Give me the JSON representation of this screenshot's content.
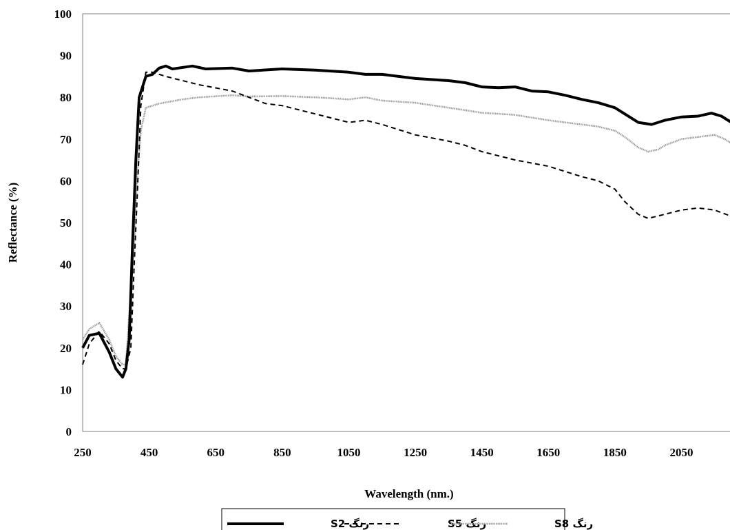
{
  "chart_data": {
    "type": "line",
    "title": "",
    "xlabel": "Wavelength (nm.)",
    "ylabel": "Reflectance (%)",
    "xlim": [
      250,
      2200
    ],
    "ylim": [
      0,
      100
    ],
    "x_ticks": [
      250,
      450,
      650,
      850,
      1050,
      1250,
      1450,
      1650,
      1850,
      2050
    ],
    "y_ticks": [
      0,
      10,
      20,
      30,
      40,
      50,
      60,
      70,
      80,
      90,
      100
    ],
    "grid": false,
    "legend_position": "bottom",
    "series": [
      {
        "name": "رنگ S2",
        "style": "solid-thick",
        "color": "#000000",
        "points": [
          [
            250,
            20
          ],
          [
            270,
            23
          ],
          [
            300,
            23.5
          ],
          [
            330,
            19
          ],
          [
            350,
            15
          ],
          [
            370,
            13
          ],
          [
            380,
            15
          ],
          [
            390,
            22
          ],
          [
            400,
            45
          ],
          [
            410,
            65
          ],
          [
            420,
            80
          ],
          [
            440,
            85
          ],
          [
            460,
            85.5
          ],
          [
            480,
            87
          ],
          [
            500,
            87.5
          ],
          [
            520,
            86.8
          ],
          [
            580,
            87.5
          ],
          [
            620,
            86.8
          ],
          [
            700,
            87
          ],
          [
            750,
            86.3
          ],
          [
            850,
            86.8
          ],
          [
            950,
            86.5
          ],
          [
            1050,
            86
          ],
          [
            1100,
            85.5
          ],
          [
            1150,
            85.5
          ],
          [
            1200,
            85
          ],
          [
            1250,
            84.5
          ],
          [
            1350,
            84
          ],
          [
            1400,
            83.5
          ],
          [
            1450,
            82.5
          ],
          [
            1500,
            82.3
          ],
          [
            1550,
            82.5
          ],
          [
            1600,
            81.5
          ],
          [
            1650,
            81.3
          ],
          [
            1700,
            80.5
          ],
          [
            1750,
            79.5
          ],
          [
            1800,
            78.7
          ],
          [
            1850,
            77.5
          ],
          [
            1880,
            76
          ],
          [
            1920,
            74
          ],
          [
            1960,
            73.5
          ],
          [
            1980,
            74
          ],
          [
            2000,
            74.5
          ],
          [
            2050,
            75.3
          ],
          [
            2100,
            75.5
          ],
          [
            2140,
            76.2
          ],
          [
            2170,
            75.5
          ],
          [
            2200,
            74
          ]
        ]
      },
      {
        "name": "رنگ S5",
        "style": "dashed",
        "color": "#000000",
        "points": [
          [
            250,
            16
          ],
          [
            270,
            21
          ],
          [
            300,
            24
          ],
          [
            330,
            21
          ],
          [
            350,
            17
          ],
          [
            370,
            15
          ],
          [
            380,
            15
          ],
          [
            395,
            20
          ],
          [
            405,
            40
          ],
          [
            415,
            58
          ],
          [
            425,
            78
          ],
          [
            440,
            86
          ],
          [
            460,
            86
          ],
          [
            500,
            85
          ],
          [
            600,
            83
          ],
          [
            700,
            81.5
          ],
          [
            800,
            78.5
          ],
          [
            850,
            78
          ],
          [
            950,
            76
          ],
          [
            1000,
            75
          ],
          [
            1050,
            74
          ],
          [
            1100,
            74.5
          ],
          [
            1150,
            73.5
          ],
          [
            1250,
            71
          ],
          [
            1350,
            69.5
          ],
          [
            1400,
            68.5
          ],
          [
            1450,
            67
          ],
          [
            1550,
            65
          ],
          [
            1650,
            63.5
          ],
          [
            1750,
            61
          ],
          [
            1800,
            60
          ],
          [
            1850,
            58
          ],
          [
            1880,
            55
          ],
          [
            1920,
            52
          ],
          [
            1950,
            51
          ],
          [
            2000,
            52
          ],
          [
            2050,
            53
          ],
          [
            2100,
            53.5
          ],
          [
            2150,
            53
          ],
          [
            2200,
            51.5
          ]
        ]
      },
      {
        "name": "رنگ S8",
        "style": "gray-dotted",
        "color": "#9a9a9a",
        "points": [
          [
            250,
            22
          ],
          [
            270,
            24.5
          ],
          [
            300,
            26
          ],
          [
            330,
            22
          ],
          [
            350,
            18
          ],
          [
            370,
            16
          ],
          [
            380,
            16
          ],
          [
            390,
            28
          ],
          [
            405,
            45
          ],
          [
            415,
            62
          ],
          [
            425,
            72
          ],
          [
            440,
            77.5
          ],
          [
            480,
            78.5
          ],
          [
            550,
            79.5
          ],
          [
            600,
            80
          ],
          [
            700,
            80.5
          ],
          [
            750,
            80.2
          ],
          [
            850,
            80.3
          ],
          [
            950,
            80
          ],
          [
            1050,
            79.5
          ],
          [
            1100,
            80
          ],
          [
            1150,
            79.2
          ],
          [
            1250,
            78.7
          ],
          [
            1350,
            77.5
          ],
          [
            1450,
            76.3
          ],
          [
            1550,
            75.8
          ],
          [
            1650,
            74.5
          ],
          [
            1700,
            74
          ],
          [
            1750,
            73.5
          ],
          [
            1800,
            73
          ],
          [
            1850,
            72
          ],
          [
            1880,
            70.5
          ],
          [
            1920,
            68
          ],
          [
            1950,
            67
          ],
          [
            1980,
            67.5
          ],
          [
            2000,
            68.5
          ],
          [
            2050,
            70
          ],
          [
            2100,
            70.5
          ],
          [
            2150,
            71
          ],
          [
            2180,
            70
          ],
          [
            2200,
            69
          ]
        ]
      }
    ]
  }
}
